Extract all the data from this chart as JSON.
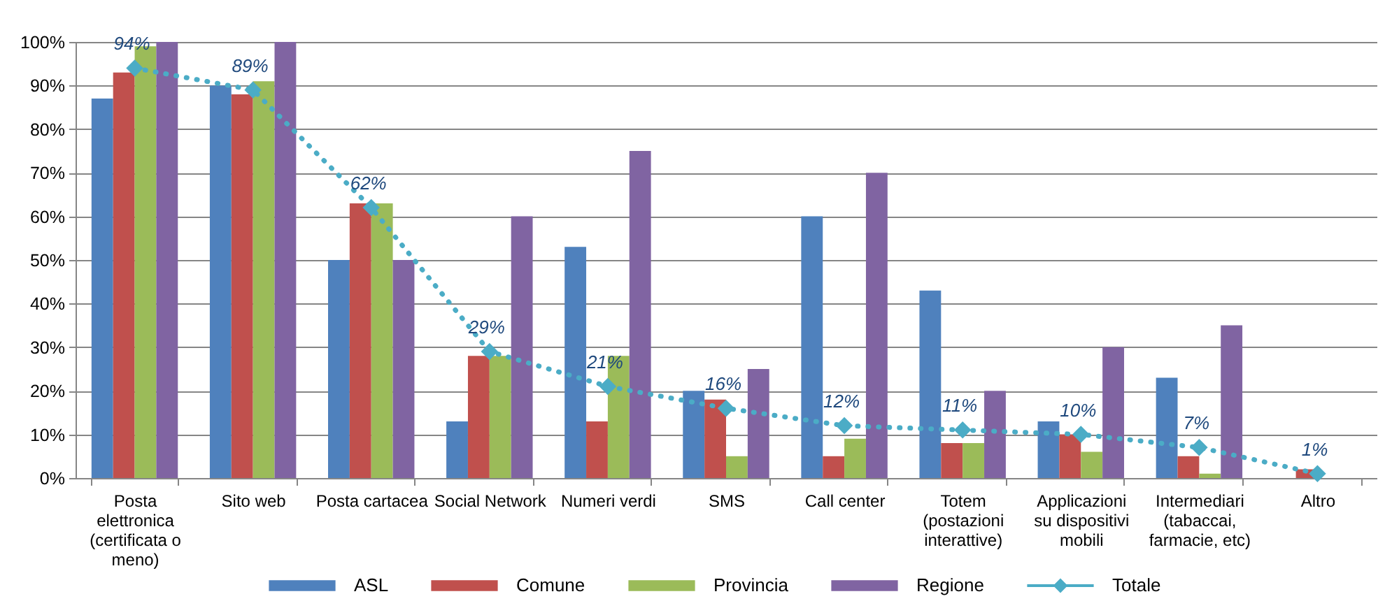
{
  "chart_data": {
    "type": "bar",
    "categories": [
      "Posta elettronica (certificata o meno)",
      "Sito web",
      "Posta cartacea",
      "Social Network",
      "Numeri verdi",
      "SMS",
      "Call center",
      "Totem (postazioni interattive)",
      "Applicazioni su dispositivi mobili",
      "Intermediari (tabaccai, farmacie, etc)",
      "Altro"
    ],
    "series": [
      {
        "name": "ASL",
        "color": "#4f81bd",
        "values": [
          87,
          90,
          50,
          13,
          53,
          20,
          60,
          43,
          13,
          23,
          null
        ]
      },
      {
        "name": "Comune",
        "color": "#c0504d",
        "values": [
          93,
          88,
          63,
          28,
          13,
          18,
          5,
          8,
          10,
          5,
          2
        ]
      },
      {
        "name": "Provincia",
        "color": "#9bbb59",
        "values": [
          99,
          91,
          63,
          28,
          28,
          5,
          9,
          8,
          6,
          1,
          null
        ]
      },
      {
        "name": "Regione",
        "color": "#8064a2",
        "values": [
          100,
          100,
          50,
          60,
          75,
          25,
          70,
          20,
          30,
          35,
          null
        ]
      },
      {
        "name": "Totale",
        "type": "line",
        "color": "#4bacc6",
        "values": [
          94,
          89,
          62,
          29,
          21,
          16,
          12,
          11,
          10,
          7,
          1
        ],
        "value_labels": [
          "94%",
          "89%",
          "62%",
          "29%",
          "21%",
          "16%",
          "12%",
          "11%",
          "10%",
          "7%",
          "1%"
        ]
      }
    ],
    "ylim": [
      0,
      100
    ],
    "yticks": [
      {
        "value": 0,
        "label": "0%"
      },
      {
        "value": 10,
        "label": "10%"
      },
      {
        "value": 20,
        "label": "20%"
      },
      {
        "value": 30,
        "label": "30%"
      },
      {
        "value": 40,
        "label": "40%"
      },
      {
        "value": 50,
        "label": "50%"
      },
      {
        "value": 60,
        "label": "60%"
      },
      {
        "value": 70,
        "label": "70%"
      },
      {
        "value": 80,
        "label": "80%"
      },
      {
        "value": 90,
        "label": "90%"
      },
      {
        "value": 100,
        "label": "100%"
      }
    ],
    "grid": "y",
    "legend": "bottom",
    "marker": "diamond",
    "line_style": "dotted"
  }
}
